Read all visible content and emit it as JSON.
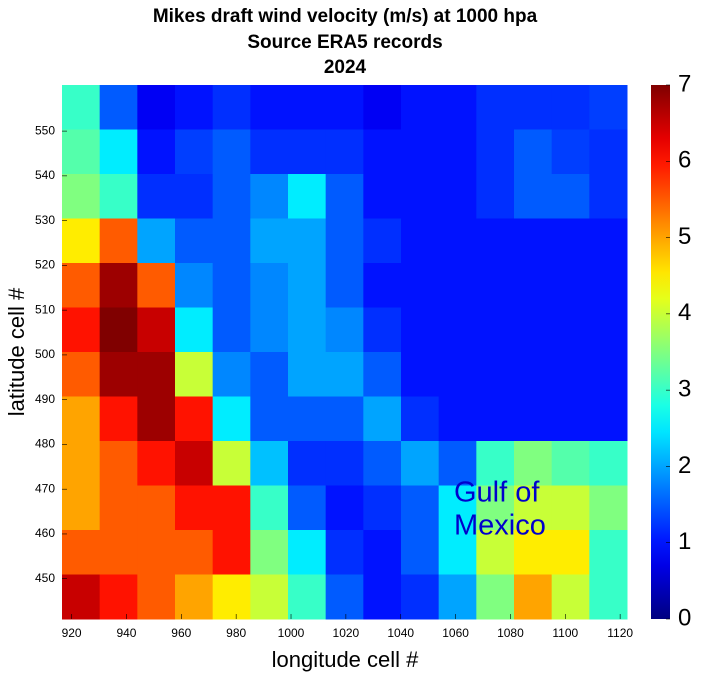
{
  "chart_data": {
    "type": "heatmap",
    "title": [
      "Mikes draft wind velocity (m/s) at 1000 hpa",
      "Source ERA5 records",
      "2024"
    ],
    "x_label": "longitude cell #",
    "y_label": "latitude cell #",
    "xlim": [
      916.5,
      1122.5
    ],
    "ylim": [
      441,
      560.3
    ],
    "xticks": [
      920,
      940,
      960,
      980,
      1000,
      1020,
      1040,
      1060,
      1080,
      1100,
      1120
    ],
    "yticks": [
      450,
      460,
      470,
      480,
      490,
      500,
      510,
      520,
      530,
      540,
      550
    ],
    "colormap": "jet",
    "colorbar": {
      "lim": [
        0,
        7
      ],
      "ticks": [
        0,
        1,
        2,
        3,
        4,
        5,
        6,
        7
      ]
    },
    "annotation": [
      "Gulf of",
      "Mexico"
    ],
    "z": [
      [
        3,
        1.5,
        0.8,
        1,
        1.2,
        1,
        1,
        1,
        0.8,
        1,
        1,
        1.2,
        1.2,
        1.2,
        1.3
      ],
      [
        3.2,
        2.5,
        1,
        1.3,
        1.5,
        1.2,
        1.2,
        1.2,
        1,
        1,
        1,
        1.2,
        1.5,
        1.3,
        1.2
      ],
      [
        3.5,
        3,
        1.2,
        1.2,
        1.5,
        1.8,
        2.5,
        1.5,
        1,
        1,
        1,
        1.2,
        1.5,
        1.5,
        1.2
      ],
      [
        4.5,
        5.5,
        2,
        1.5,
        1.5,
        2,
        2,
        1.5,
        1.2,
        1,
        1,
        1,
        1,
        1,
        1
      ],
      [
        5.5,
        6.8,
        5.5,
        1.8,
        1.5,
        1.8,
        2,
        1.5,
        1,
        1,
        1,
        1,
        1,
        1,
        1
      ],
      [
        6,
        7,
        6.5,
        2.5,
        1.5,
        1.8,
        2,
        1.8,
        1.2,
        1,
        1,
        1,
        1,
        1,
        1
      ],
      [
        5.5,
        6.8,
        6.8,
        4,
        1.8,
        1.5,
        2,
        2,
        1.5,
        1,
        1,
        1,
        1,
        1,
        1
      ],
      [
        5,
        6,
        6.8,
        6,
        2.5,
        1.5,
        1.5,
        1.5,
        2,
        1.2,
        1,
        1,
        1,
        1,
        1
      ],
      [
        5,
        5.5,
        6,
        6.5,
        4,
        2.2,
        1.2,
        1.2,
        1.5,
        2,
        1.5,
        3,
        3.5,
        3.2,
        3
      ],
      [
        5,
        5.5,
        5.5,
        6,
        6,
        3,
        1.5,
        1,
        1.2,
        1.5,
        2.5,
        3.5,
        4,
        4,
        3.5
      ],
      [
        5.5,
        5.5,
        5.5,
        5.5,
        6,
        3.5,
        2.5,
        1.2,
        1,
        1.5,
        2.5,
        4,
        4.5,
        4.5,
        3
      ],
      [
        6.5,
        6,
        5.5,
        5,
        4.5,
        4,
        3,
        1.5,
        1,
        1.2,
        2,
        3.5,
        5,
        4,
        3
      ]
    ]
  }
}
